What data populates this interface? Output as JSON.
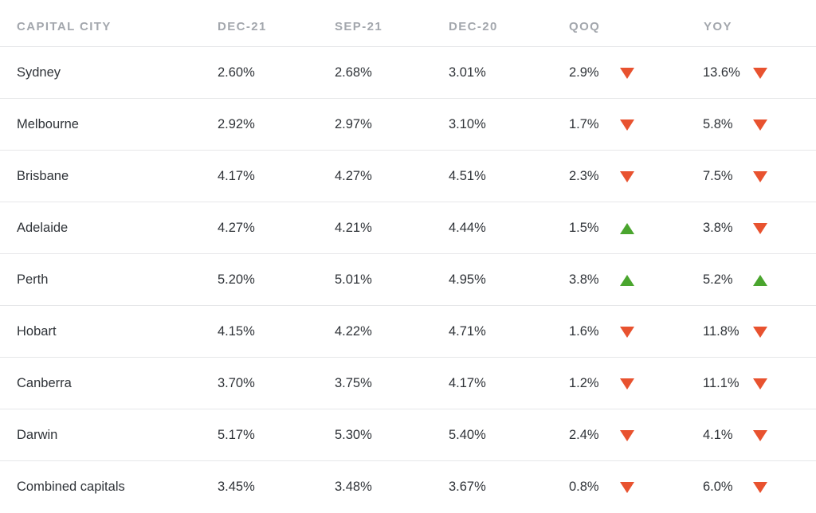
{
  "header": {
    "city": "CAPITAL CITY",
    "dec21": "DEC-21",
    "sep21": "SEP-21",
    "dec20": "DEC-20",
    "qoq": "QOQ",
    "yoy": "YOY"
  },
  "colors": {
    "down": "#e8522f",
    "up": "#4aa52e",
    "header_text": "#a3a7ad",
    "divider": "#e6e7e9"
  },
  "rows": [
    {
      "city": "Sydney",
      "dec21": "2.60%",
      "sep21": "2.68%",
      "dec20": "3.01%",
      "qoq": "2.9%",
      "qoq_dir": "down",
      "yoy": "13.6%",
      "yoy_dir": "down"
    },
    {
      "city": "Melbourne",
      "dec21": "2.92%",
      "sep21": "2.97%",
      "dec20": "3.10%",
      "qoq": "1.7%",
      "qoq_dir": "down",
      "yoy": "5.8%",
      "yoy_dir": "down"
    },
    {
      "city": "Brisbane",
      "dec21": "4.17%",
      "sep21": "4.27%",
      "dec20": "4.51%",
      "qoq": "2.3%",
      "qoq_dir": "down",
      "yoy": "7.5%",
      "yoy_dir": "down"
    },
    {
      "city": "Adelaide",
      "dec21": "4.27%",
      "sep21": "4.21%",
      "dec20": "4.44%",
      "qoq": "1.5%",
      "qoq_dir": "up",
      "yoy": "3.8%",
      "yoy_dir": "down"
    },
    {
      "city": "Perth",
      "dec21": "5.20%",
      "sep21": "5.01%",
      "dec20": "4.95%",
      "qoq": "3.8%",
      "qoq_dir": "up",
      "yoy": "5.2%",
      "yoy_dir": "up"
    },
    {
      "city": "Hobart",
      "dec21": "4.15%",
      "sep21": "4.22%",
      "dec20": "4.71%",
      "qoq": "1.6%",
      "qoq_dir": "down",
      "yoy": "11.8%",
      "yoy_dir": "down"
    },
    {
      "city": "Canberra",
      "dec21": "3.70%",
      "sep21": "3.75%",
      "dec20": "4.17%",
      "qoq": "1.2%",
      "qoq_dir": "down",
      "yoy": "11.1%",
      "yoy_dir": "down"
    },
    {
      "city": "Darwin",
      "dec21": "5.17%",
      "sep21": "5.30%",
      "dec20": "5.40%",
      "qoq": "2.4%",
      "qoq_dir": "down",
      "yoy": "4.1%",
      "yoy_dir": "down"
    },
    {
      "city": "Combined capitals",
      "dec21": "3.45%",
      "sep21": "3.48%",
      "dec20": "3.67%",
      "qoq": "0.8%",
      "qoq_dir": "down",
      "yoy": "6.0%",
      "yoy_dir": "down"
    }
  ]
}
